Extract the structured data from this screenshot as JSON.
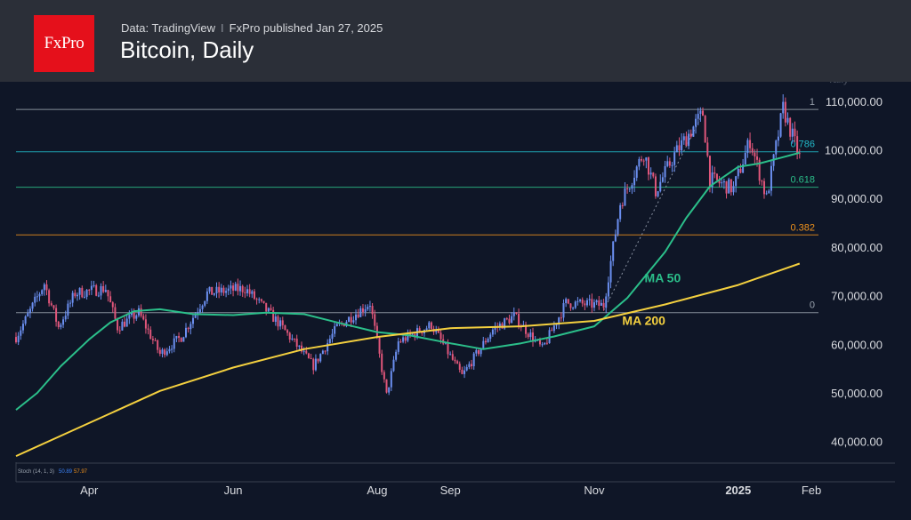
{
  "header": {
    "logo_text": "FxPro",
    "data_source": "Data: TradingView",
    "separator": "I",
    "published": "FxPro published Jan 27, 2025",
    "title": "Bitcoin, Daily"
  },
  "chart_data": {
    "type": "line",
    "title": "Bitcoin, Daily",
    "y_axis_partial_label": "Tally",
    "ylim": [
      35000,
      114000
    ],
    "y_ticks": [
      40000,
      50000,
      60000,
      70000,
      80000,
      90000,
      100000,
      110000
    ],
    "y_tick_labels": [
      "40,000.00",
      "50,000.00",
      "60,000.00",
      "70,000.00",
      "80,000.00",
      "90,000.00",
      "100,000.00",
      "110,000.00"
    ],
    "x_range": [
      "2024-03-01",
      "2025-02-04"
    ],
    "x_ticks": [
      {
        "date": "2024-04-01",
        "label": "Apr",
        "bold": false
      },
      {
        "date": "2024-06-01",
        "label": "Jun",
        "bold": false
      },
      {
        "date": "2024-08-01",
        "label": "Aug",
        "bold": false
      },
      {
        "date": "2024-09-01",
        "label": "Sep",
        "bold": false
      },
      {
        "date": "2024-11-01",
        "label": "Nov",
        "bold": false
      },
      {
        "date": "2025-01-01",
        "label": "2025",
        "bold": true
      },
      {
        "date": "2025-02-01",
        "label": "Feb",
        "bold": false
      }
    ],
    "fib_levels": [
      {
        "label": "1",
        "value": 108300,
        "color": "#9aa3ae"
      },
      {
        "label": "0.786",
        "value": 99600,
        "color": "#22b8c8"
      },
      {
        "label": "0.618",
        "value": 92300,
        "color": "#2bbf8a"
      },
      {
        "label": "0.382",
        "value": 82500,
        "color": "#f0921c"
      },
      {
        "label": "0",
        "value": 66500,
        "color": "#9aa3ae"
      }
    ],
    "series": [
      {
        "name": "MA 50",
        "color": "#2bbf8a",
        "points": [
          [
            "2024-03-01",
            46500
          ],
          [
            "2024-03-10",
            50000
          ],
          [
            "2024-03-20",
            55500
          ],
          [
            "2024-04-01",
            61000
          ],
          [
            "2024-04-10",
            64500
          ],
          [
            "2024-04-20",
            66800
          ],
          [
            "2024-05-01",
            67200
          ],
          [
            "2024-05-15",
            66200
          ],
          [
            "2024-06-01",
            66000
          ],
          [
            "2024-06-15",
            66500
          ],
          [
            "2024-07-01",
            66200
          ],
          [
            "2024-07-15",
            64500
          ],
          [
            "2024-08-01",
            62500
          ],
          [
            "2024-08-15",
            61800
          ],
          [
            "2024-09-01",
            60200
          ],
          [
            "2024-09-15",
            59000
          ],
          [
            "2024-10-01",
            60200
          ],
          [
            "2024-10-15",
            61600
          ],
          [
            "2024-11-01",
            63700
          ],
          [
            "2024-11-15",
            69500
          ],
          [
            "2024-12-01",
            79000
          ],
          [
            "2024-12-10",
            86000
          ],
          [
            "2024-12-20",
            92500
          ],
          [
            "2025-01-01",
            96500
          ],
          [
            "2025-01-10",
            97200
          ],
          [
            "2025-01-20",
            98500
          ],
          [
            "2025-01-27",
            99400
          ]
        ]
      },
      {
        "name": "MA 200",
        "color": "#f4d03f",
        "points": [
          [
            "2024-03-01",
            37000
          ],
          [
            "2024-04-01",
            43800
          ],
          [
            "2024-05-01",
            50400
          ],
          [
            "2024-06-01",
            55200
          ],
          [
            "2024-07-01",
            59000
          ],
          [
            "2024-08-01",
            61500
          ],
          [
            "2024-09-01",
            63300
          ],
          [
            "2024-10-01",
            63700
          ],
          [
            "2024-11-01",
            64800
          ],
          [
            "2024-12-01",
            68200
          ],
          [
            "2025-01-01",
            72200
          ],
          [
            "2025-01-27",
            76600
          ]
        ]
      }
    ],
    "price_path": [
      [
        "2024-03-01",
        61500
      ],
      [
        "2024-03-05",
        65000
      ],
      [
        "2024-03-13",
        72500
      ],
      [
        "2024-03-19",
        63500
      ],
      [
        "2024-03-26",
        70500
      ],
      [
        "2024-04-08",
        71500
      ],
      [
        "2024-04-13",
        63500
      ],
      [
        "2024-04-22",
        66500
      ],
      [
        "2024-05-01",
        58000
      ],
      [
        "2024-05-10",
        61500
      ],
      [
        "2024-05-21",
        70500
      ],
      [
        "2024-06-06",
        71500
      ],
      [
        "2024-06-20",
        64500
      ],
      [
        "2024-07-05",
        55500
      ],
      [
        "2024-07-15",
        63500
      ],
      [
        "2024-07-29",
        68500
      ],
      [
        "2024-08-05",
        49500
      ],
      [
        "2024-08-10",
        60500
      ],
      [
        "2024-08-24",
        64000
      ],
      [
        "2024-09-06",
        53500
      ],
      [
        "2024-09-19",
        63000
      ],
      [
        "2024-09-28",
        65800
      ],
      [
        "2024-10-10",
        59000
      ],
      [
        "2024-10-20",
        68500
      ],
      [
        "2024-11-05",
        68000
      ],
      [
        "2024-11-12",
        89000
      ],
      [
        "2024-11-22",
        99500
      ],
      [
        "2024-11-27",
        91500
      ],
      [
        "2024-12-05",
        99000
      ],
      [
        "2024-12-17",
        107500
      ],
      [
        "2024-12-20",
        94000
      ],
      [
        "2024-12-30",
        92000
      ],
      [
        "2025-01-06",
        102000
      ],
      [
        "2025-01-13",
        90000
      ],
      [
        "2025-01-20",
        108500
      ],
      [
        "2025-01-27",
        98500
      ]
    ],
    "projection_line": [
      [
        "2024-11-05",
        67000
      ],
      [
        "2024-12-16",
        106500
      ]
    ],
    "annotations": [
      {
        "text": "MA 50",
        "date": "2024-11-30",
        "value": 72800,
        "color": "#2bbf8a"
      },
      {
        "text": "MA 200",
        "date": "2024-11-22",
        "value": 64000,
        "color": "#f4d03f"
      }
    ],
    "stoch": {
      "label": "Stoch (14, 1, 3)",
      "k": "50.89",
      "d": "57.97",
      "k_color": "#3b82f6",
      "d_color": "#f0921c"
    }
  }
}
